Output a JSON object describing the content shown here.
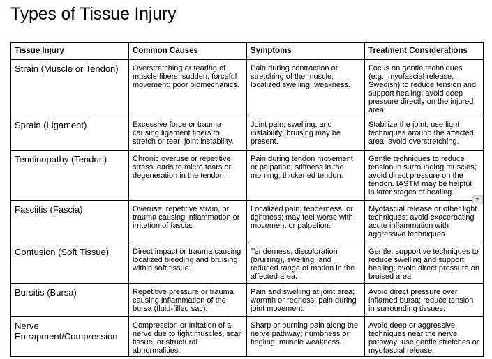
{
  "header": {
    "title": "Types of Tissue Injury"
  },
  "table": {
    "columns": [
      "Tissue Injury",
      "Common Causes",
      "Symptoms",
      "Treatment Considerations"
    ],
    "rows": [
      [
        "Strain (Muscle or Tendon)",
        "Overstretching or tearing of muscle fibers; sudden, forceful movement; poor biomechanics.",
        "Pain during contraction or stretching of the muscle; localized swelling; weakness.",
        "Focus on gentle techniques (e.g., myofascial release, Swedish) to reduce tension and support healing; avoid deep pressure directly on the injured area."
      ],
      [
        "Sprain (Ligament)",
        "Excessive force or trauma causing ligament fibers to stretch or tear; joint instability.",
        "Joint pain, swelling, and instability; bruising may be present.",
        "Stabilize the joint; use light techniques around the affected area; avoid overstretching."
      ],
      [
        "Tendinopathy (Tendon)",
        "Chronic overuse or repetitive stress leads to micro tears or degeneration in the tendon.",
        "Pain during tendon movement or palpation; stiffness in the morning; thickened tendon.",
        "Gentle techniques to reduce tension in surrounding muscles; avoid direct pressure on the tendon. IASTM may be helpful in later stages of healing."
      ],
      [
        "Fasciitis (Fascia)",
        "Overuse, repetitive strain, or trauma causing inflammation or irritation of fascia.",
        "Localized pain, tenderness, or tightness; may feel worse with movement or palpation.",
        "Myofascial release or other light techniques; avoid exacerbating acute inflammation with aggressive techniques."
      ],
      [
        "Contusion (Soft Tissue)",
        "Direct impact or trauma causing localized bleeding and bruising within soft tissue.",
        "Tenderness, discoloration (bruising), swelling, and reduced range of motion in the affected area.",
        "Gentle, supportive techniques to reduce swelling and support healing; avoid direct pressure on bruised area."
      ],
      [
        "Bursitis (Bursa)",
        "Repetitive pressure or trauma causing inflammation of the bursa (fluid-filled sac).",
        "Pain and swelling at joint area; warmth or redness; pain during joint movement.",
        "Avoid direct pressure over inflamed bursa; reduce tension in surrounding tissues."
      ],
      [
        "Nerve Entrapment/Compression",
        "Compression or irritation of a nerve due to tight muscles, scar tissue, or structural abnormalities.",
        "Sharp or burning pain along the nerve pathway; numbness or tingling; muscle weakness.",
        "Avoid deep or aggressive techniques near the nerve pathway; use gentle stretches or myofascial release."
      ]
    ]
  }
}
